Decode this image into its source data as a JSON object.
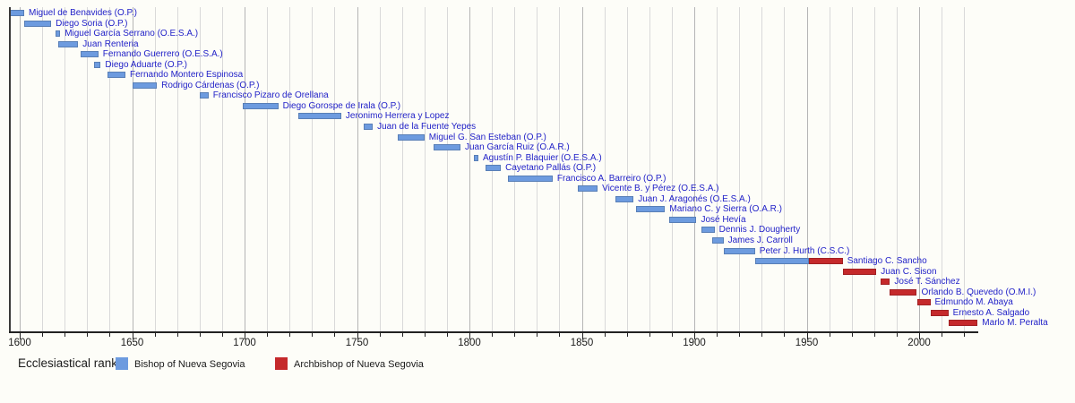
{
  "chart_data": {
    "type": "timeline",
    "title": "",
    "subject": "Bishops and Archbishops of Nueva Segovia",
    "axis": {
      "orientation": "horizontal",
      "start_year": 1595,
      "end_year": 2026,
      "major_tick_years": [
        1600,
        1650,
        1700,
        1750,
        1800,
        1850,
        1900,
        1950,
        2000
      ],
      "grid_start": 1600,
      "grid_end": 2020,
      "minor_step": 10,
      "grid_on": true
    },
    "colors": {
      "bishop": "#6D9BDF",
      "archbishop": "#C5292B",
      "label_text": "#2222C8",
      "axis_text": "#1a1a1a"
    },
    "legend": {
      "title": "Ecclesiastical rank",
      "position": "bottom",
      "items": [
        {
          "label": "Bishop of Nueva Segovia",
          "rank": "bishop",
          "color": "#6D9BDF"
        },
        {
          "label": "Archbishop of Nueva Segovia",
          "rank": "archbishop",
          "color": "#C5292B"
        }
      ]
    },
    "people": [
      {
        "label": "Miguel de Benavides (O.P.)",
        "segments": [
          {
            "rank": "bishop",
            "start": 1595,
            "end": 1602
          }
        ]
      },
      {
        "label": "Diego Soria (O.P.)",
        "segments": [
          {
            "rank": "bishop",
            "start": 1602,
            "end": 1614
          }
        ]
      },
      {
        "label": "Miguel García Serrano (O.E.S.A.)",
        "segments": [
          {
            "rank": "bishop",
            "start": 1616,
            "end": 1618
          }
        ]
      },
      {
        "label": "Juan Renteria",
        "segments": [
          {
            "rank": "bishop",
            "start": 1617,
            "end": 1626
          }
        ]
      },
      {
        "label": "Fernando Guerrero (O.E.S.A.)",
        "segments": [
          {
            "rank": "bishop",
            "start": 1627,
            "end": 1635
          }
        ]
      },
      {
        "label": "Diego Aduarte (O.P.)",
        "segments": [
          {
            "rank": "bishop",
            "start": 1633,
            "end": 1636
          }
        ]
      },
      {
        "label": "Fernando Montero Espinosa",
        "segments": [
          {
            "rank": "bishop",
            "start": 1639,
            "end": 1647
          }
        ]
      },
      {
        "label": "Rodrigo Cárdenas (O.P.)",
        "segments": [
          {
            "rank": "bishop",
            "start": 1650,
            "end": 1661
          }
        ]
      },
      {
        "label": "Francisco Pizaro de Orellana",
        "segments": [
          {
            "rank": "bishop",
            "start": 1680,
            "end": 1684
          }
        ]
      },
      {
        "label": "Diego Gorospe de Irala (O.P.)",
        "segments": [
          {
            "rank": "bishop",
            "start": 1699,
            "end": 1715
          }
        ]
      },
      {
        "label": "Jeronimo Herrera y Lopez",
        "segments": [
          {
            "rank": "bishop",
            "start": 1724,
            "end": 1743
          }
        ]
      },
      {
        "label": "Juan de la Fuente Yepes",
        "segments": [
          {
            "rank": "bishop",
            "start": 1753,
            "end": 1757
          }
        ]
      },
      {
        "label": "Miguel G. San Esteban (O.P.)",
        "segments": [
          {
            "rank": "bishop",
            "start": 1768,
            "end": 1780
          }
        ]
      },
      {
        "label": "Juan García Ruiz (O.A.R.)",
        "segments": [
          {
            "rank": "bishop",
            "start": 1784,
            "end": 1796
          }
        ]
      },
      {
        "label": "Agustín P. Blaquier (O.E.S.A.)",
        "segments": [
          {
            "rank": "bishop",
            "start": 1802,
            "end": 1804
          }
        ]
      },
      {
        "label": "Cayetano Pallás (O.P.)",
        "segments": [
          {
            "rank": "bishop",
            "start": 1807,
            "end": 1814
          }
        ]
      },
      {
        "label": "Francisco A. Barreiro (O.P.)",
        "segments": [
          {
            "rank": "bishop",
            "start": 1817,
            "end": 1837
          }
        ]
      },
      {
        "label": "Vicente B. y Pérez (O.E.S.A.)",
        "segments": [
          {
            "rank": "bishop",
            "start": 1848,
            "end": 1857
          }
        ]
      },
      {
        "label": "Juan J. Aragonés (O.E.S.A.)",
        "segments": [
          {
            "rank": "bishop",
            "start": 1865,
            "end": 1873
          }
        ]
      },
      {
        "label": "Mariano C. y Sierra (O.A.R.)",
        "segments": [
          {
            "rank": "bishop",
            "start": 1874,
            "end": 1887
          }
        ]
      },
      {
        "label": "José Hevía",
        "segments": [
          {
            "rank": "bishop",
            "start": 1889,
            "end": 1901
          }
        ]
      },
      {
        "label": "Dennis J. Dougherty",
        "segments": [
          {
            "rank": "bishop",
            "start": 1903,
            "end": 1909
          }
        ]
      },
      {
        "label": "James J. Carroll",
        "segments": [
          {
            "rank": "bishop",
            "start": 1908,
            "end": 1913
          }
        ]
      },
      {
        "label": "Peter J. Hurth (C.S.C.)",
        "segments": [
          {
            "rank": "bishop",
            "start": 1913,
            "end": 1927
          }
        ]
      },
      {
        "label": "Santiago C. Sancho",
        "segments": [
          {
            "rank": "bishop",
            "start": 1927,
            "end": 1951
          },
          {
            "rank": "archbishop",
            "start": 1951,
            "end": 1966
          }
        ]
      },
      {
        "label": "Juan C. Sison",
        "segments": [
          {
            "rank": "archbishop",
            "start": 1966,
            "end": 1981
          }
        ]
      },
      {
        "label": "José T. Sánchez",
        "segments": [
          {
            "rank": "archbishop",
            "start": 1983,
            "end": 1987
          }
        ]
      },
      {
        "label": "Orlando B. Quevedo (O.M.I.)",
        "segments": [
          {
            "rank": "archbishop",
            "start": 1987,
            "end": 1999
          }
        ]
      },
      {
        "label": "Edmundo M. Abaya",
        "segments": [
          {
            "rank": "archbishop",
            "start": 1999,
            "end": 2005
          }
        ]
      },
      {
        "label": "Ernesto A. Salgado",
        "segments": [
          {
            "rank": "archbishop",
            "start": 2005,
            "end": 2013
          }
        ]
      },
      {
        "label": "Marlo M. Peralta",
        "ongoing": true,
        "segments": [
          {
            "rank": "archbishop",
            "start": 2013,
            "end": 2026
          }
        ]
      }
    ]
  }
}
